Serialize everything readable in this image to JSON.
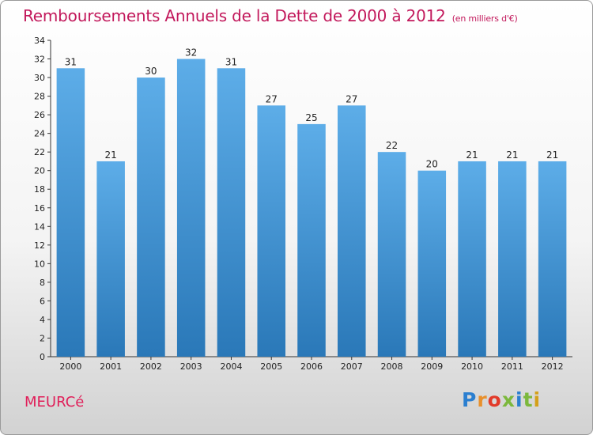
{
  "chart_data": {
    "type": "bar",
    "title": "Remboursements Annuels de la Dette de 2000 à 2012",
    "subtitle": "(en milliers d'€)",
    "categories": [
      "2000",
      "2001",
      "2002",
      "2003",
      "2004",
      "2005",
      "2006",
      "2007",
      "2008",
      "2009",
      "2010",
      "2011",
      "2012"
    ],
    "values": [
      31,
      21,
      30,
      32,
      31,
      27,
      25,
      27,
      22,
      20,
      21,
      21,
      21
    ],
    "ylim": [
      0,
      34
    ],
    "yticks": [
      0,
      2,
      4,
      6,
      8,
      10,
      12,
      14,
      16,
      18,
      20,
      22,
      24,
      26,
      28,
      30,
      32,
      34
    ],
    "grid": false,
    "legend": "none",
    "bar_color_top": "#5dade8",
    "bar_color_bottom": "#2a78b8"
  },
  "footer": {
    "commune": "MEURCé"
  },
  "logo": {
    "letters": [
      "P",
      "r",
      "o",
      "x",
      "i",
      "t",
      "i"
    ],
    "colors": [
      "#2b7fd0",
      "#e8902c",
      "#e23b2a",
      "#7cb83c",
      "#2b7fd0",
      "#7cb83c",
      "#d4a019"
    ]
  }
}
